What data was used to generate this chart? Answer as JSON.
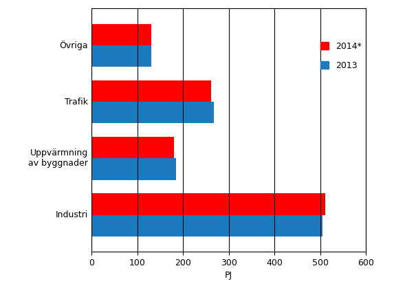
{
  "categories": [
    "Industri",
    "Uppvärmning\nav byggnader",
    "Trafik",
    "Övriga"
  ],
  "values_2014": [
    510,
    180,
    262,
    130
  ],
  "values_2013": [
    505,
    185,
    268,
    130
  ],
  "color_2014": "#ff0000",
  "color_2013": "#1c7bbf",
  "xlabel": "PJ",
  "xlim": [
    0,
    600
  ],
  "xticks": [
    0,
    100,
    200,
    300,
    400,
    500,
    600
  ],
  "legend_2014": "2014*",
  "legend_2013": "2013",
  "bar_height": 0.38,
  "figsize": [
    6.05,
    4.16
  ],
  "dpi": 100
}
